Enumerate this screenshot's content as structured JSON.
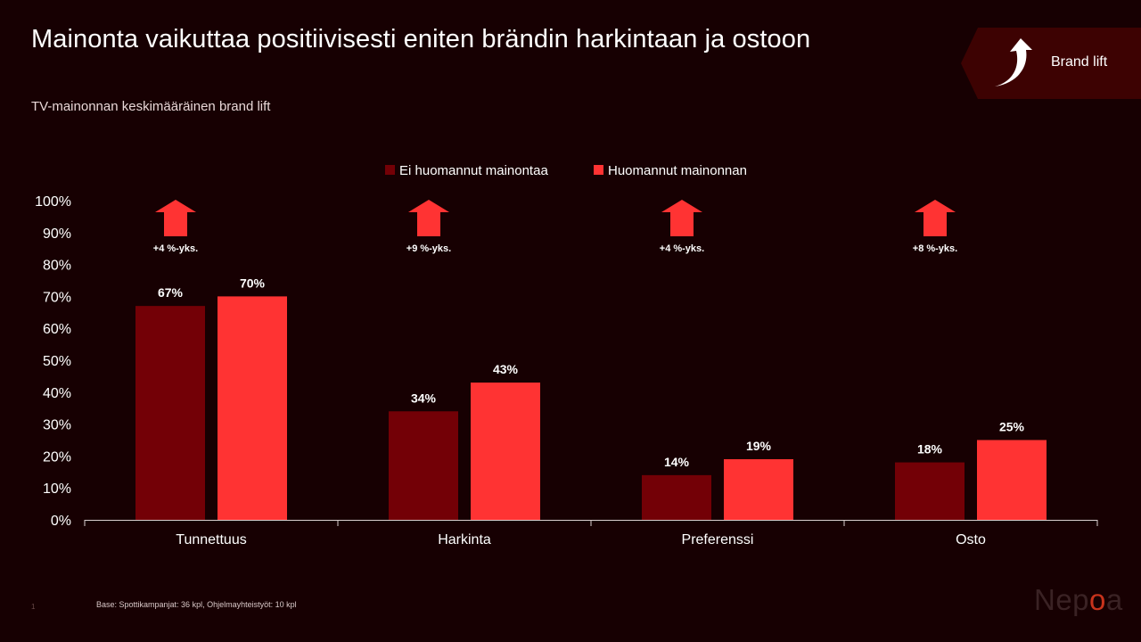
{
  "header": {
    "title": "Mainonta vaikuttaa positiivisesti eniten brändin harkintaan ja ostoon",
    "subtitle": "TV-mainonnan keskimääräinen brand lift",
    "badge_label": "Brand lift",
    "badge_icon": "curved-up-arrow-icon"
  },
  "colors": {
    "background": "#170002",
    "series_dark": "#730006",
    "series_bright": "#ff3333",
    "badge_bg": "#3d0202"
  },
  "chart_data": {
    "type": "bar",
    "categories": [
      "Tunnettuus",
      "Harkinta",
      "Preferenssi",
      "Osto"
    ],
    "series": [
      {
        "name": "Ei huomannut mainontaa",
        "values": [
          67,
          34,
          14,
          18
        ],
        "labels": [
          "67%",
          "34%",
          "14%",
          "18%"
        ]
      },
      {
        "name": "Huomannut mainonnan",
        "values": [
          70,
          43,
          19,
          25
        ],
        "labels": [
          "70%",
          "43%",
          "19%",
          "25%"
        ]
      }
    ],
    "lift_labels": [
      "+4 %-yks.",
      "+9 %-yks.",
      "+4 %-yks.",
      "+8 %-yks."
    ],
    "yticks": [
      "0%",
      "10%",
      "20%",
      "30%",
      "40%",
      "50%",
      "60%",
      "70%",
      "80%",
      "90%",
      "100%"
    ],
    "ylim": [
      0,
      100
    ],
    "legend_position": "top-center",
    "grid": false
  },
  "footer": {
    "footnote": "Base: Spottikampanjat: 36 kpl, Ohjelmayhteistyöt: 10 kpl",
    "page_number": "1",
    "logo_pre": "Nep",
    "logo_o": "o",
    "logo_post": "a"
  }
}
